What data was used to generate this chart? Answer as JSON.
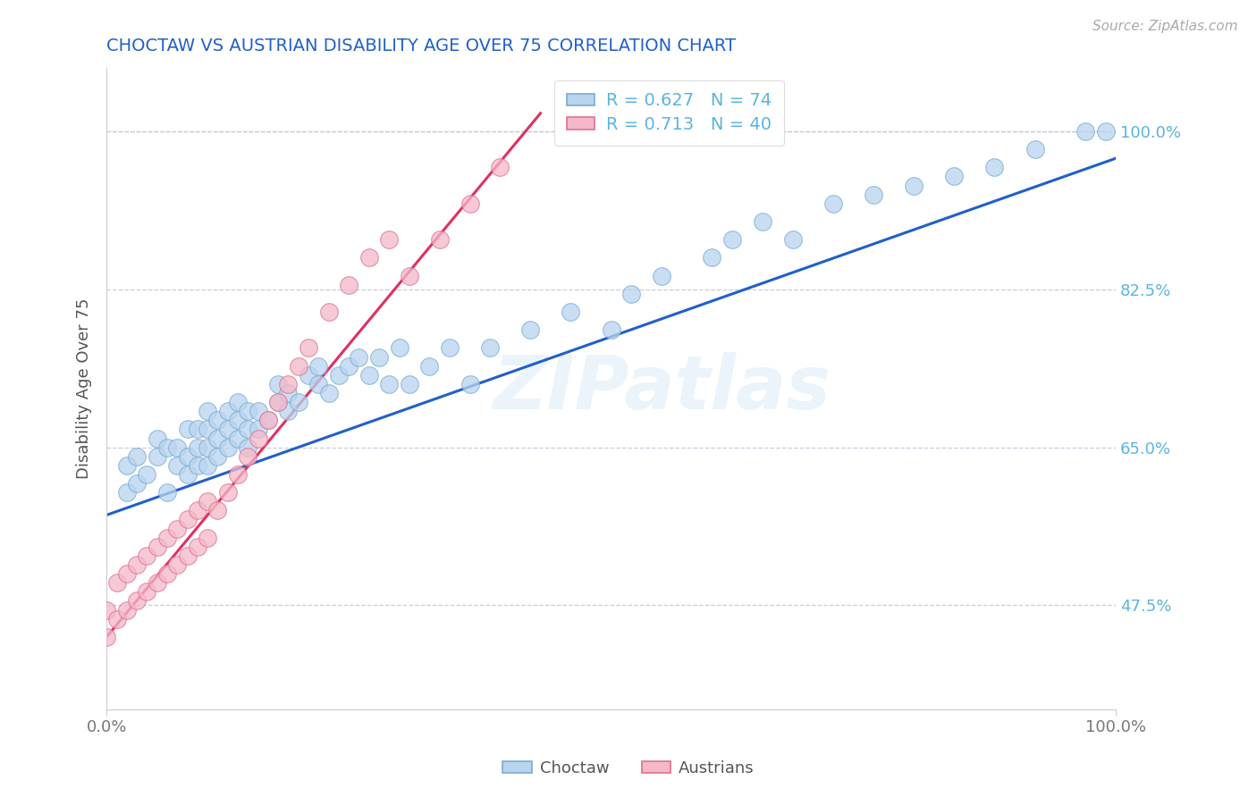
{
  "title": "CHOCTAW VS AUSTRIAN DISABILITY AGE OVER 75 CORRELATION CHART",
  "source": "Source: ZipAtlas.com",
  "ylabel": "Disability Age Over 75",
  "watermark": "ZIPatlas",
  "xlim": [
    0.0,
    1.0
  ],
  "ylim": [
    0.36,
    1.07
  ],
  "x_ticks": [
    0.0,
    1.0
  ],
  "x_tick_labels": [
    "0.0%",
    "100.0%"
  ],
  "y_tick_values": [
    0.475,
    0.65,
    0.825,
    1.0
  ],
  "y_tick_labels": [
    "47.5%",
    "65.0%",
    "82.5%",
    "100.0%"
  ],
  "choctaw_color": "#b8d4ee",
  "choctaw_edge": "#7aaad4",
  "austrian_color": "#f4b8c8",
  "austrian_edge": "#e07090",
  "choctaw_line_color": "#2060c8",
  "austrian_line_color": "#e03060",
  "tick_color": "#5ab4e0",
  "grid_color": "#c0c8d8",
  "title_color": "#2060c8",
  "choctaw_R": 0.627,
  "choctaw_N": 74,
  "austrian_R": 0.713,
  "austrian_N": 40,
  "choctaw_line_x": [
    0.0,
    1.0
  ],
  "choctaw_line_y": [
    0.575,
    0.97
  ],
  "austrian_line_x": [
    0.0,
    0.43
  ],
  "austrian_line_y": [
    0.44,
    1.02
  ],
  "choctaw_scatter_x": [
    0.02,
    0.02,
    0.03,
    0.03,
    0.04,
    0.05,
    0.05,
    0.06,
    0.06,
    0.07,
    0.07,
    0.08,
    0.08,
    0.08,
    0.09,
    0.09,
    0.09,
    0.1,
    0.1,
    0.1,
    0.1,
    0.11,
    0.11,
    0.11,
    0.12,
    0.12,
    0.12,
    0.13,
    0.13,
    0.13,
    0.14,
    0.14,
    0.14,
    0.15,
    0.15,
    0.16,
    0.17,
    0.17,
    0.18,
    0.18,
    0.19,
    0.2,
    0.21,
    0.21,
    0.22,
    0.23,
    0.24,
    0.25,
    0.26,
    0.27,
    0.28,
    0.29,
    0.3,
    0.32,
    0.34,
    0.36,
    0.38,
    0.42,
    0.46,
    0.5,
    0.52,
    0.55,
    0.6,
    0.62,
    0.65,
    0.68,
    0.72,
    0.76,
    0.8,
    0.84,
    0.88,
    0.92,
    0.97,
    0.99
  ],
  "choctaw_scatter_y": [
    0.63,
    0.6,
    0.64,
    0.61,
    0.62,
    0.66,
    0.64,
    0.6,
    0.65,
    0.63,
    0.65,
    0.62,
    0.64,
    0.67,
    0.63,
    0.65,
    0.67,
    0.63,
    0.65,
    0.67,
    0.69,
    0.64,
    0.66,
    0.68,
    0.65,
    0.67,
    0.69,
    0.66,
    0.68,
    0.7,
    0.65,
    0.67,
    0.69,
    0.67,
    0.69,
    0.68,
    0.7,
    0.72,
    0.69,
    0.71,
    0.7,
    0.73,
    0.72,
    0.74,
    0.71,
    0.73,
    0.74,
    0.75,
    0.73,
    0.75,
    0.72,
    0.76,
    0.72,
    0.74,
    0.76,
    0.72,
    0.76,
    0.78,
    0.8,
    0.78,
    0.82,
    0.84,
    0.86,
    0.88,
    0.9,
    0.88,
    0.92,
    0.93,
    0.94,
    0.95,
    0.96,
    0.98,
    1.0,
    1.0
  ],
  "austrian_scatter_x": [
    0.0,
    0.0,
    0.01,
    0.01,
    0.02,
    0.02,
    0.03,
    0.03,
    0.04,
    0.04,
    0.05,
    0.05,
    0.06,
    0.06,
    0.07,
    0.07,
    0.08,
    0.08,
    0.09,
    0.09,
    0.1,
    0.1,
    0.11,
    0.12,
    0.13,
    0.14,
    0.15,
    0.16,
    0.17,
    0.18,
    0.19,
    0.2,
    0.22,
    0.24,
    0.26,
    0.28,
    0.3,
    0.33,
    0.36,
    0.39
  ],
  "austrian_scatter_y": [
    0.47,
    0.44,
    0.46,
    0.5,
    0.47,
    0.51,
    0.48,
    0.52,
    0.49,
    0.53,
    0.5,
    0.54,
    0.51,
    0.55,
    0.52,
    0.56,
    0.53,
    0.57,
    0.54,
    0.58,
    0.55,
    0.59,
    0.58,
    0.6,
    0.62,
    0.64,
    0.66,
    0.68,
    0.7,
    0.72,
    0.74,
    0.76,
    0.8,
    0.83,
    0.86,
    0.88,
    0.84,
    0.88,
    0.92,
    0.96
  ]
}
